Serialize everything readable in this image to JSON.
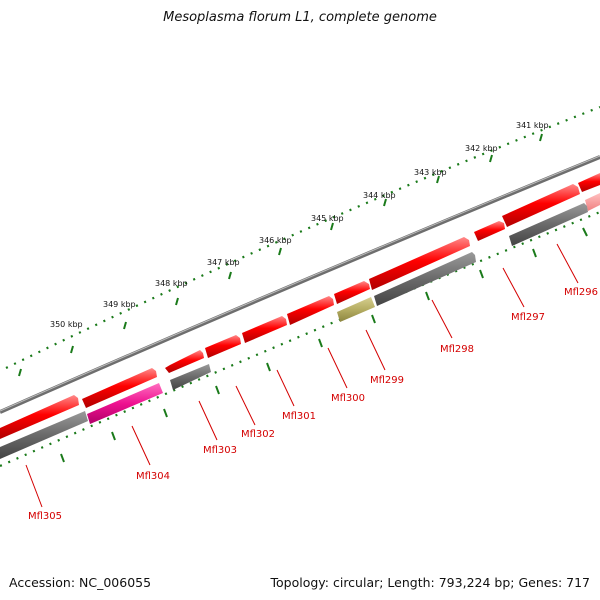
{
  "title": "Mesoplasma florum L1, complete genome",
  "footer": {
    "accession": "Accession: NC_006055",
    "summary": "Topology: circular; Length: 793,224 bp; Genes: 717"
  },
  "ruler": {
    "unit": "kbp",
    "labels": [
      "341 kbp",
      "342 kbp",
      "343 kbp",
      "344 kbp",
      "345 kbp",
      "346 kbp",
      "347 kbp",
      "348 kbp",
      "349 kbp",
      "350 kbp"
    ]
  },
  "genes": [
    "Mfl296",
    "Mfl297",
    "Mfl298",
    "Mfl299",
    "Mfl300",
    "Mfl301",
    "Mfl302",
    "Mfl303",
    "Mfl304",
    "Mfl305"
  ],
  "colors": {
    "gene_red": "#ee0000",
    "rna_grey": "#6e6e6e",
    "backbone": "#7a7a7a",
    "pink": "#ee1190",
    "olive": "#b5ad62",
    "tick_green": "#1a7a1a",
    "label_red": "#d40000"
  }
}
